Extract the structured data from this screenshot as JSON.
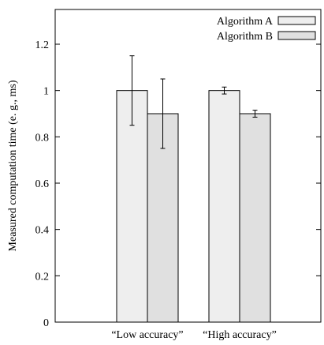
{
  "chart_data": {
    "type": "bar",
    "title": "",
    "xlabel": "",
    "ylabel": "Measured computation time (e. g., ms)",
    "categories": [
      "“Low accuracy”",
      "“High accuracy”"
    ],
    "series": [
      {
        "name": "Algorithm A",
        "values": [
          1.0,
          1.0
        ],
        "error": [
          0.15,
          0.015
        ],
        "color": "#eeeeee"
      },
      {
        "name": "Algorithm B",
        "values": [
          0.9,
          0.9
        ],
        "error": [
          0.15,
          0.015
        ],
        "color": "#e0e0e0"
      }
    ],
    "ylim": [
      0,
      1.35
    ],
    "yticks": [
      "0",
      "0.2",
      "0.4",
      "0.6",
      "0.8",
      "1",
      "1.2"
    ],
    "grid": false,
    "legend_position": "top-right"
  }
}
